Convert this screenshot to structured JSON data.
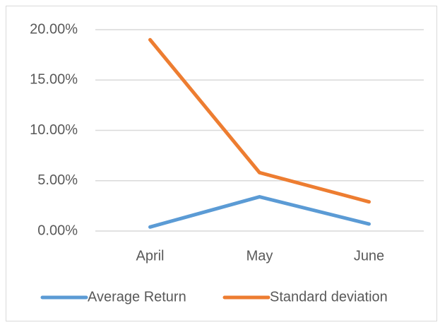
{
  "chart_data": {
    "type": "line",
    "categories": [
      "April",
      "May",
      "June"
    ],
    "series": [
      {
        "name": "Average Return",
        "color": "#5b9bd5",
        "values": [
          0.4,
          3.4,
          0.7
        ]
      },
      {
        "name": "Standard deviation",
        "color": "#ed7d31",
        "values": [
          19.0,
          5.8,
          2.9
        ]
      }
    ],
    "ylim": [
      0,
      20
    ],
    "yticks": [
      {
        "value": 0,
        "label": "0.00%"
      },
      {
        "value": 5,
        "label": "5.00%"
      },
      {
        "value": 10,
        "label": "10.00%"
      },
      {
        "value": 15,
        "label": "15.00%"
      },
      {
        "value": 20,
        "label": "20.00%"
      }
    ],
    "grid": true,
    "legend": "bottom"
  }
}
